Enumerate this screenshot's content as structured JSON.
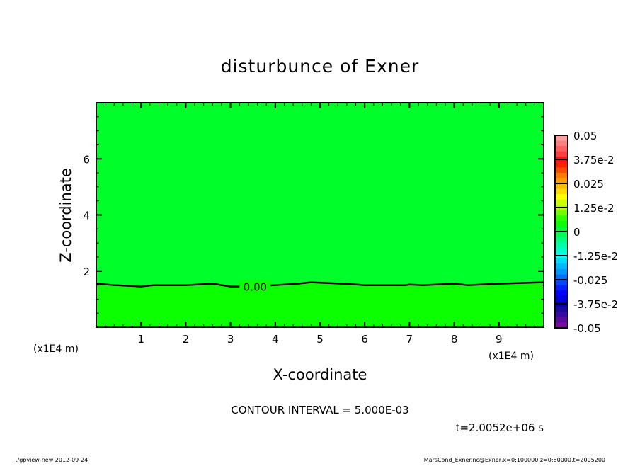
{
  "chart_data": {
    "type": "heatmap",
    "title": "disturbunce of Exner",
    "xlabel": "X-coordinate",
    "ylabel": "Z-coordinate",
    "x_unit_label": "(x1E4 m)",
    "y_unit_label": "(x1E4 m)",
    "xlim": [
      0,
      10
    ],
    "ylim": [
      0,
      8
    ],
    "x_ticks": [
      1,
      2,
      3,
      4,
      5,
      6,
      7,
      8,
      9
    ],
    "y_ticks": [
      2,
      4,
      6
    ],
    "contour_interval_text": "CONTOUR INTERVAL = 5.000E-03",
    "time_text": "t=2.0052e+06 s",
    "contour": {
      "level_label": "0.00",
      "x": [
        0,
        0.4,
        1,
        1.3,
        2,
        2.6,
        3,
        3.5,
        4,
        4.5,
        4.8,
        5.5,
        6,
        6.5,
        6.9,
        7,
        7.3,
        8,
        8.3,
        9,
        10
      ],
      "z": [
        1.55,
        1.5,
        1.45,
        1.5,
        1.5,
        1.55,
        1.45,
        1.45,
        1.5,
        1.55,
        1.6,
        1.55,
        1.5,
        1.5,
        1.5,
        1.52,
        1.5,
        1.55,
        1.5,
        1.55,
        1.6
      ]
    },
    "regions": {
      "above_contour_color": "#00ff2a",
      "below_contour_color": "#0cff00"
    },
    "colorbar": {
      "min": -0.05,
      "max": 0.05,
      "step": 0.005,
      "tick_labels": [
        "0.05",
        "3.75e-2",
        "0.025",
        "1.25e-2",
        "0",
        "-1.25e-2",
        "-0.025",
        "-3.75e-2",
        "-0.05"
      ],
      "colors_top_to_bottom": [
        "#ff9f9f",
        "#ff7f7f",
        "#ff5f5f",
        "#ff3f3f",
        "#ff1414",
        "#ff1e00",
        "#ff4a00",
        "#ff7a00",
        "#ff9a00",
        "#ffba00",
        "#ffdc00",
        "#ffff00",
        "#ccff00",
        "#b0ff00",
        "#70ff00",
        "#30ff00",
        "#0cff00",
        "#00ff2a",
        "#00ff55",
        "#00ff80"
      ]
    },
    "colorbar_lower": [
      "#00ffaa",
      "#00ffd0",
      "#00ffff",
      "#00d8ff",
      "#00b8ff",
      "#0098ff",
      "#0070ff",
      "#0048ff",
      "#0020ff",
      "#0000ff",
      "#0000dd",
      "#0000bb",
      "#1a0aa0",
      "#3a0aa0",
      "#5a0aa0",
      "#7a0aa8"
    ],
    "footer": {
      "left": "./gpview-new  2012-09-24",
      "right": "MarsCond_Exner.nc@Exner,x=0:100000,z=0:80000,t=2005200"
    }
  }
}
